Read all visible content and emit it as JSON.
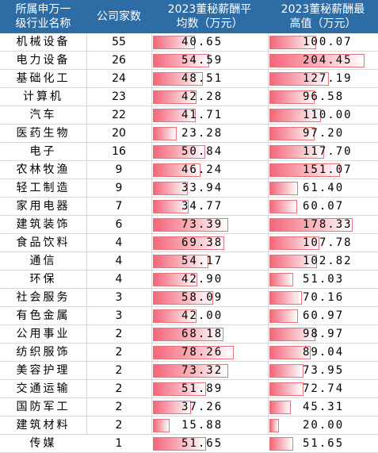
{
  "chart_data": {
    "type": "table",
    "columns": [
      "所属申万一级行业名称",
      "公司家数",
      "2023董秘薪酬平均数（万元）",
      "2023董秘薪酬最高值（万元）"
    ],
    "header_lines": [
      [
        "所属申万一",
        "级行业名称"
      ],
      [
        "公司家数"
      ],
      [
        "2023董秘薪酬平",
        "均数（万元）"
      ],
      [
        "2023董秘薪酬最",
        "高值（万元）"
      ]
    ],
    "rows": [
      {
        "industry": "机械设备",
        "count": 55,
        "avg": "40.65",
        "max": "100.07"
      },
      {
        "industry": "电力设备",
        "count": 26,
        "avg": "54.59",
        "max": "204.45"
      },
      {
        "industry": "基础化工",
        "count": 24,
        "avg": "48.51",
        "max": "127.19"
      },
      {
        "industry": "计算机",
        "count": 23,
        "avg": "42.28",
        "max": "96.58"
      },
      {
        "industry": "汽车",
        "count": 22,
        "avg": "41.71",
        "max": "110.00"
      },
      {
        "industry": "医药生物",
        "count": 20,
        "avg": "23.28",
        "max": "97.20"
      },
      {
        "industry": "电子",
        "count": 16,
        "avg": "50.84",
        "max": "117.70"
      },
      {
        "industry": "农林牧渔",
        "count": 9,
        "avg": "46.24",
        "max": "151.07"
      },
      {
        "industry": "轻工制造",
        "count": 9,
        "avg": "33.94",
        "max": "61.40"
      },
      {
        "industry": "家用电器",
        "count": 7,
        "avg": "34.77",
        "max": "60.07"
      },
      {
        "industry": "建筑装饰",
        "count": 6,
        "avg": "73.39",
        "max": "178.33"
      },
      {
        "industry": "食品饮料",
        "count": 4,
        "avg": "69.38",
        "max": "107.78"
      },
      {
        "industry": "通信",
        "count": 4,
        "avg": "54.17",
        "max": "102.82"
      },
      {
        "industry": "环保",
        "count": 4,
        "avg": "42.90",
        "max": "51.03"
      },
      {
        "industry": "社会服务",
        "count": 3,
        "avg": "58.09",
        "max": "70.16"
      },
      {
        "industry": "有色金属",
        "count": 3,
        "avg": "42.00",
        "max": "60.97"
      },
      {
        "industry": "公用事业",
        "count": 2,
        "avg": "68.18",
        "max": "98.97"
      },
      {
        "industry": "纺织服饰",
        "count": 2,
        "avg": "78.26",
        "max": "89.04"
      },
      {
        "industry": "美容护理",
        "count": 2,
        "avg": "73.32",
        "max": "73.95"
      },
      {
        "industry": "交通运输",
        "count": 2,
        "avg": "51.89",
        "max": "72.74"
      },
      {
        "industry": "国防军工",
        "count": 2,
        "avg": "37.26",
        "max": "45.31"
      },
      {
        "industry": "建筑材料",
        "count": 2,
        "avg": "15.88",
        "max": "20.00"
      },
      {
        "industry": "传媒",
        "count": 1,
        "avg": "51.65",
        "max": "51.65"
      }
    ],
    "avg_range": [
      0,
      110
    ],
    "max_range": [
      0,
      230
    ],
    "colors": {
      "header_bg": "#2e6ca6",
      "bar": "#f4667a"
    }
  }
}
